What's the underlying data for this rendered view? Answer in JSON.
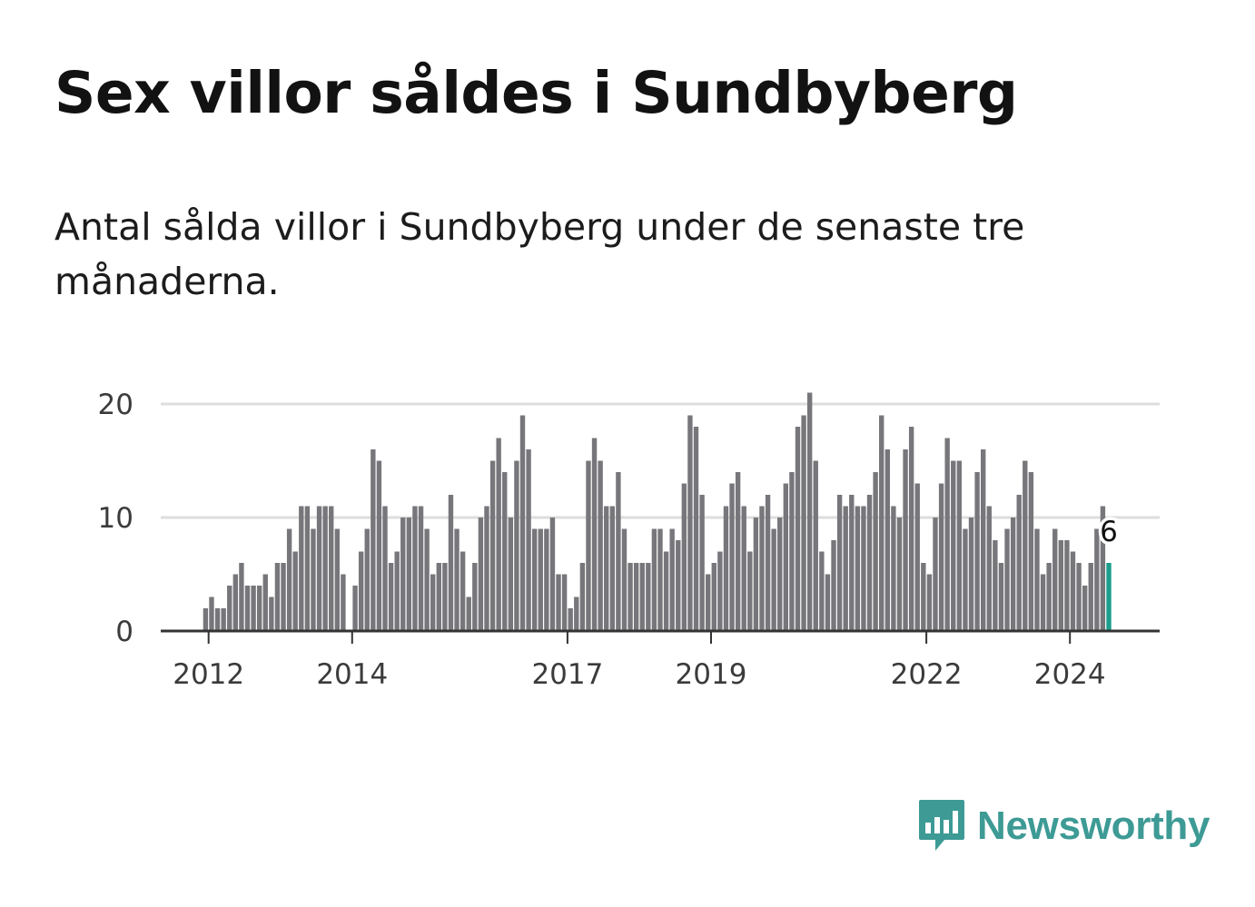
{
  "header": {
    "title": "Sex villor såldes i Sundbyberg",
    "subtitle": "Antal sålda villor i Sundbyberg under de senaste tre månaderna."
  },
  "colors": {
    "bar": "#77777b",
    "highlight": "#1c9d8c",
    "brand": "#3d9a95",
    "grid": "#dddddd",
    "axis": "#333333"
  },
  "logo": {
    "name": "Newsworthy",
    "icon": "newsworthy-chart-bubble-icon"
  },
  "chart_data": {
    "type": "bar",
    "title": "Sex villor såldes i Sundbyberg",
    "xlabel": "",
    "ylabel": "",
    "ylim": [
      0,
      20
    ],
    "y_ticks": [
      "0",
      "10",
      "20"
    ],
    "grid": true,
    "x_range": [
      2011.3333,
      2025.25
    ],
    "x_ticks": [
      {
        "label": "2012",
        "value": 2012
      },
      {
        "label": "2014",
        "value": 2014
      },
      {
        "label": "2017",
        "value": 2017
      },
      {
        "label": "2019",
        "value": 2019
      },
      {
        "label": "2022",
        "value": 2022
      },
      {
        "label": "2024",
        "value": 2024
      }
    ],
    "start": "2012-01",
    "period": "3-month rolling count, monthly",
    "values": [
      2,
      3,
      2,
      2,
      4,
      5,
      6,
      4,
      4,
      4,
      5,
      3,
      6,
      6,
      9,
      7,
      11,
      11,
      9,
      11,
      11,
      11,
      9,
      5,
      0,
      4,
      7,
      9,
      16,
      15,
      11,
      6,
      7,
      10,
      10,
      11,
      11,
      9,
      5,
      6,
      6,
      12,
      9,
      7,
      3,
      6,
      10,
      11,
      15,
      17,
      14,
      10,
      15,
      19,
      16,
      9,
      9,
      9,
      10,
      5,
      5,
      2,
      3,
      6,
      15,
      17,
      15,
      11,
      11,
      14,
      9,
      6,
      6,
      6,
      6,
      9,
      9,
      7,
      9,
      8,
      13,
      19,
      18,
      12,
      5,
      6,
      7,
      11,
      13,
      14,
      11,
      7,
      10,
      11,
      12,
      9,
      10,
      13,
      14,
      18,
      19,
      21,
      15,
      7,
      5,
      8,
      12,
      11,
      12,
      11,
      11,
      12,
      14,
      19,
      16,
      11,
      10,
      16,
      18,
      13,
      6,
      5,
      10,
      13,
      17,
      15,
      15,
      9,
      10,
      14,
      16,
      11,
      8,
      6,
      9,
      10,
      12,
      15,
      14,
      9,
      5,
      6,
      9,
      8,
      8,
      7,
      6,
      4,
      6,
      9,
      11,
      6
    ],
    "highlight_last": true,
    "last_value_label": "6"
  }
}
